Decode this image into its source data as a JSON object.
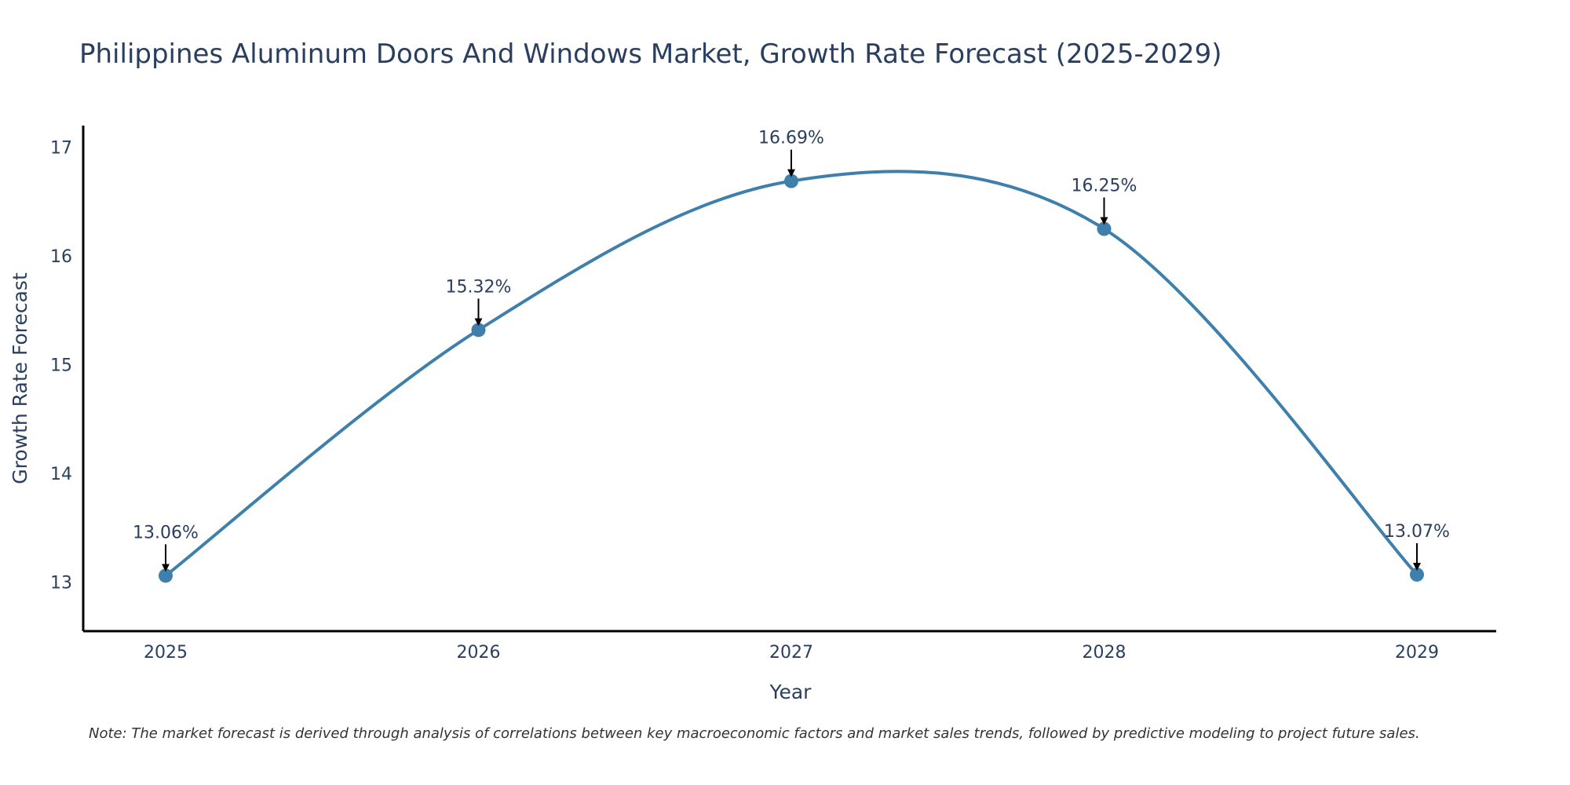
{
  "chart_data": {
    "type": "line",
    "title": "Philippines Aluminum Doors And Windows Market, Growth Rate Forecast (2025-2029)",
    "xlabel": "Year",
    "ylabel": "Growth Rate Forecast",
    "categories": [
      "2025",
      "2026",
      "2027",
      "2028",
      "2029"
    ],
    "values": [
      13.06,
      15.32,
      16.69,
      16.25,
      13.07
    ],
    "data_labels": [
      "13.06%",
      "15.32%",
      "16.69%",
      "16.25%",
      "13.07%"
    ],
    "ylim": [
      12.55,
      17.2
    ],
    "yticks": [
      13,
      14,
      15,
      16,
      17
    ],
    "ytick_labels": [
      "13",
      "14",
      "15",
      "16",
      "17"
    ],
    "line_color": "#3f7fab",
    "marker_color": "#3f7fab",
    "arrow_color": "#000000",
    "grid": false,
    "note": "Note: The market forecast is derived through analysis of correlations between key macroeconomic factors and market sales trends, followed by predictive modeling to project future sales."
  }
}
